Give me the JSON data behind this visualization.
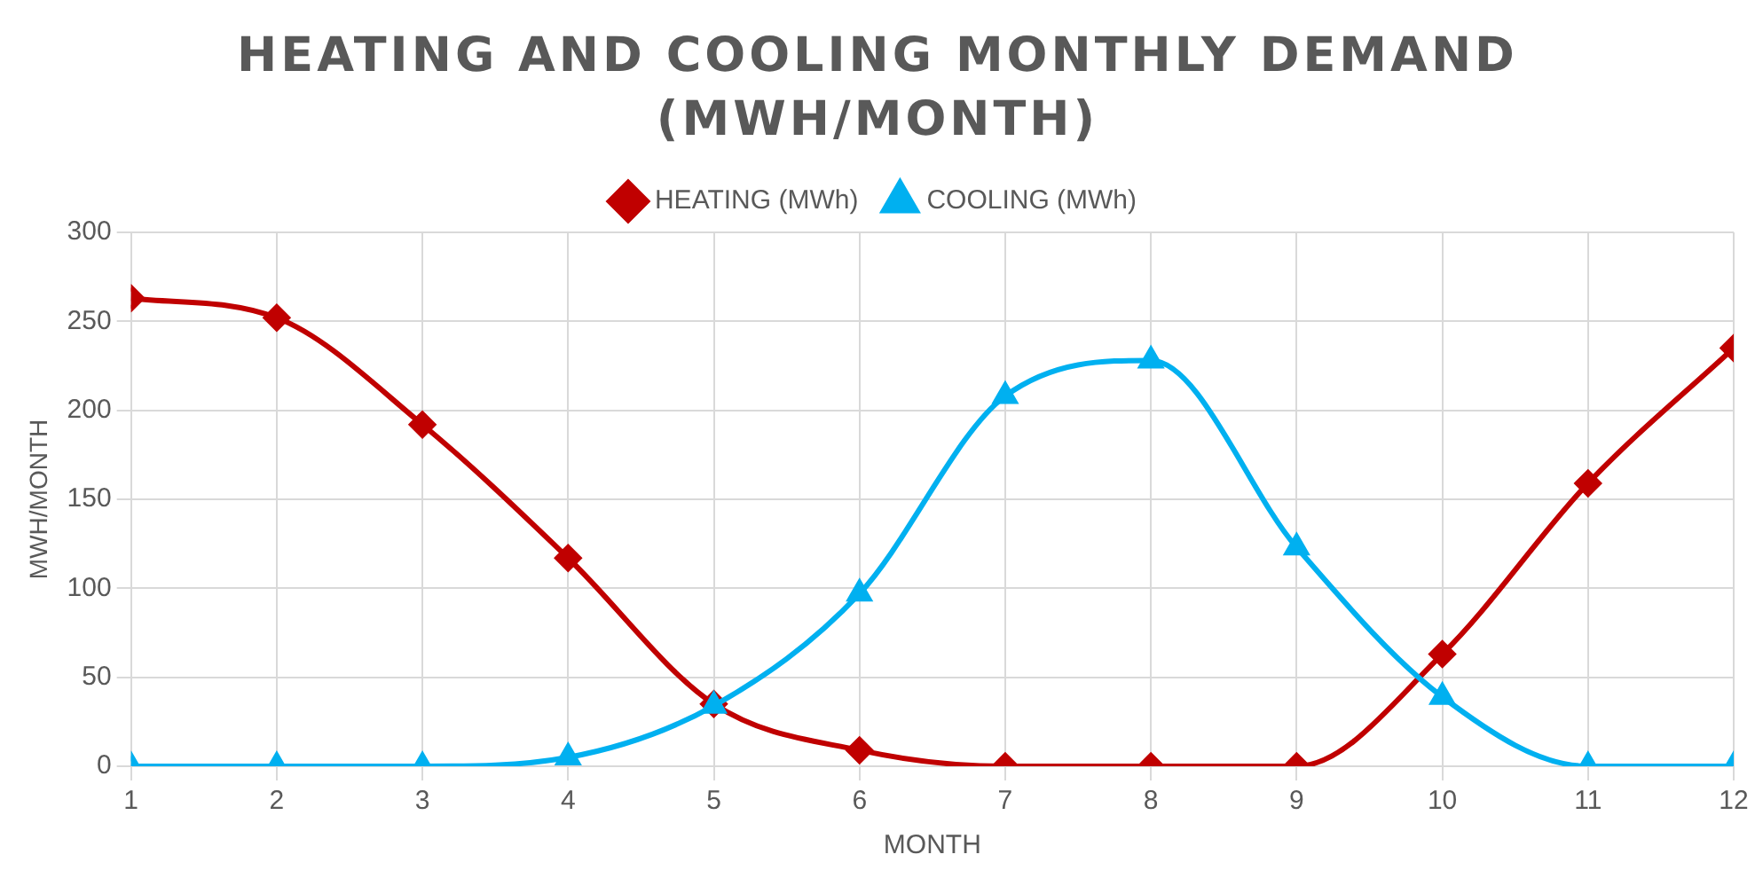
{
  "chart_data": {
    "type": "line",
    "title": "HEATING AND COOLING MONTHLY DEMAND (MWH/MONTH)",
    "xlabel": "MONTH",
    "ylabel": "MWH/MONTH",
    "x": [
      1,
      2,
      3,
      4,
      5,
      6,
      7,
      8,
      9,
      10,
      11,
      12
    ],
    "series": [
      {
        "name": "HEATING (MWh)",
        "color": "#c00000",
        "marker": "diamond",
        "values": [
          263,
          252,
          192,
          117,
          35,
          9,
          0,
          0,
          0,
          63,
          159,
          235
        ]
      },
      {
        "name": "COOLING (MWh)",
        "color": "#00b0f0",
        "marker": "triangle",
        "values": [
          0,
          0,
          0,
          5,
          34,
          97,
          208,
          228,
          123,
          39,
          0,
          0
        ]
      }
    ],
    "xlim": [
      1,
      12
    ],
    "xticks": [
      1,
      2,
      3,
      4,
      5,
      6,
      7,
      8,
      9,
      10,
      11,
      12
    ],
    "ylim": [
      0,
      300
    ],
    "yticks": [
      0,
      50,
      100,
      150,
      200,
      250,
      300
    ],
    "grid": true,
    "legend": "top",
    "line_style": "solid"
  }
}
